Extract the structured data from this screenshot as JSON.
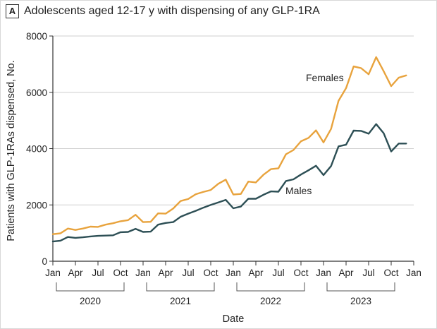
{
  "panel": {
    "letter": "A",
    "title": "Adolescents aged 12-17 y with dispensing of any GLP-1RA"
  },
  "chart_data": {
    "type": "line",
    "title": "Adolescents aged 12-17 y with dispensing of any GLP-1RA",
    "xlabel": "Date",
    "ylabel": "Patients with GLP-1RAs dispensed, No.",
    "ylim": [
      0,
      8000
    ],
    "yticks": [
      0,
      2000,
      4000,
      6000,
      8000
    ],
    "ytick_labels": [
      "0",
      "2000",
      "4000",
      "6000",
      "8000"
    ],
    "xlim_months": [
      0,
      48
    ],
    "xtick_labels": [
      "Jan",
      "Apr",
      "Jul",
      "Oct",
      "Jan",
      "Apr",
      "Jul",
      "Oct",
      "Jan",
      "Apr",
      "Jul",
      "Oct",
      "Jan",
      "Apr",
      "Jul",
      "Oct",
      "Jan"
    ],
    "years": [
      "2020",
      "2021",
      "2022",
      "2023"
    ],
    "grid": "horizontal",
    "x_note": "x values are months since January 2020",
    "series": [
      {
        "name": "Females",
        "color": "#e8a33d",
        "x": [
          0,
          1,
          2,
          3,
          4,
          5,
          6,
          7,
          8,
          9,
          10,
          11,
          12,
          13,
          14,
          15,
          16,
          17,
          18,
          19,
          20,
          21,
          22,
          23,
          24,
          25,
          26,
          27,
          28,
          29,
          30,
          31,
          32,
          33,
          34,
          35,
          36,
          37,
          38,
          39,
          40,
          41,
          42,
          43,
          44,
          45,
          46,
          47
        ],
        "values": [
          960,
          990,
          1160,
          1110,
          1160,
          1230,
          1220,
          1300,
          1350,
          1420,
          1460,
          1650,
          1390,
          1400,
          1700,
          1690,
          1870,
          2140,
          2210,
          2380,
          2460,
          2530,
          2750,
          2900,
          2370,
          2390,
          2830,
          2800,
          3070,
          3270,
          3300,
          3800,
          3950,
          4260,
          4380,
          4650,
          4220,
          4700,
          5700,
          6150,
          6920,
          6860,
          6640,
          7250,
          6750,
          6220,
          6520,
          6600
        ]
      },
      {
        "name": "Males",
        "color": "#2d4f55",
        "x": [
          0,
          1,
          2,
          3,
          4,
          5,
          6,
          7,
          8,
          9,
          10,
          11,
          12,
          13,
          14,
          15,
          16,
          17,
          18,
          19,
          20,
          21,
          22,
          23,
          24,
          25,
          26,
          27,
          28,
          29,
          30,
          31,
          32,
          33,
          34,
          35,
          36,
          37,
          38,
          39,
          40,
          41,
          42,
          43,
          44,
          45,
          46,
          47
        ],
        "values": [
          700,
          730,
          860,
          830,
          850,
          880,
          900,
          910,
          920,
          1030,
          1040,
          1150,
          1040,
          1050,
          1300,
          1360,
          1390,
          1580,
          1690,
          1790,
          1900,
          2000,
          2090,
          2180,
          1880,
          1940,
          2220,
          2220,
          2360,
          2480,
          2470,
          2850,
          2910,
          3080,
          3230,
          3390,
          3060,
          3380,
          4080,
          4140,
          4640,
          4630,
          4530,
          4870,
          4550,
          3900,
          4180,
          4180
        ]
      }
    ]
  }
}
